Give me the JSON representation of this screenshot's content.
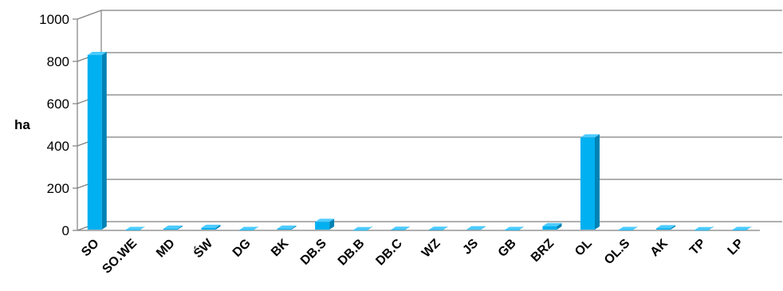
{
  "chart_data": {
    "type": "bar",
    "title": "",
    "xlabel": "",
    "ylabel": "ha",
    "ylim": [
      0,
      1000
    ],
    "yticks": [
      0,
      200,
      400,
      600,
      800,
      1000
    ],
    "grid": true,
    "legend": "none",
    "categories": [
      "SO",
      "SO.WE",
      "MD",
      "ŚW",
      "DG",
      "BK",
      "DB.S",
      "DB.B",
      "DB.C",
      "WZ",
      "JS",
      "GB",
      "BRZ",
      "OL",
      "OL.S",
      "AK",
      "TP",
      "LP"
    ],
    "values": [
      830,
      2,
      8,
      12,
      2,
      8,
      40,
      1,
      3,
      3,
      5,
      2,
      20,
      440,
      2,
      10,
      1,
      2
    ],
    "colors": {
      "bar_front": "#00B0F0",
      "bar_side": "#0082B4",
      "bar_top": "#4CCBFF",
      "grid": "#7F7F7F"
    }
  }
}
